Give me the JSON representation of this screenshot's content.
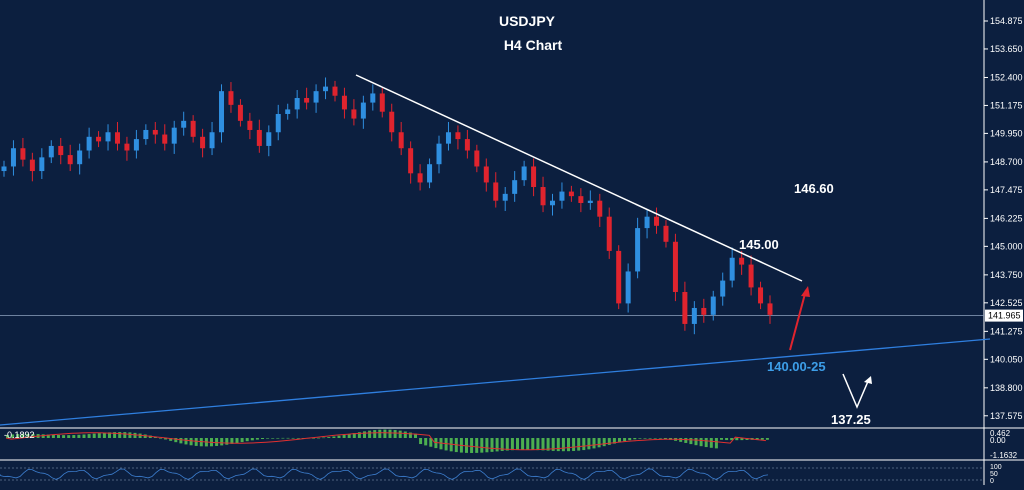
{
  "chart_data": {
    "type": "candlestick",
    "title": "USDJPY",
    "subtitle": "H4 Chart",
    "y_axis": {
      "ticks": [
        "154.875",
        "153.650",
        "152.400",
        "151.175",
        "149.950",
        "148.700",
        "147.475",
        "146.225",
        "145.000",
        "143.750",
        "142.525",
        "141.275",
        "140.050",
        "138.800",
        "137.575"
      ],
      "ylim": [
        137.0,
        156.0
      ],
      "position": "right"
    },
    "current_price": "141.965",
    "series": [
      {
        "values": [
          148.5,
          149.3,
          148.8,
          148.3,
          148.9,
          149.4,
          149.0,
          148.6,
          149.2,
          149.8,
          149.6,
          150.0,
          149.5,
          149.2,
          149.7,
          150.1,
          149.9,
          149.5,
          150.2,
          150.5,
          149.8,
          149.3,
          150.0,
          151.8,
          151.2,
          150.5,
          150.1,
          149.4,
          150.0,
          150.8,
          151.0,
          151.5,
          151.3,
          151.8,
          152.0,
          151.6,
          151.0,
          150.6,
          151.3,
          151.7,
          150.9,
          150.0,
          149.3,
          148.2,
          147.8,
          148.6,
          149.5,
          150.0,
          149.7,
          149.2,
          148.5,
          147.8,
          147.0,
          147.3,
          147.9,
          148.5,
          147.6,
          146.8,
          147.0,
          147.4,
          147.2,
          146.9,
          147.0,
          146.3,
          144.8,
          142.5,
          143.9,
          145.8,
          146.3,
          145.9,
          145.2,
          143.0,
          141.6,
          142.3,
          142.0,
          142.8,
          143.5,
          144.5,
          144.2,
          143.2,
          142.5,
          142.0
        ]
      }
    ],
    "annotations": [
      {
        "text": "146.60",
        "color": "#ffffff"
      },
      {
        "text": "145.00",
        "color": "#ffffff"
      },
      {
        "text": "140.00-25",
        "color": "#3d9ee8"
      },
      {
        "text": "137.25",
        "color": "#ffffff"
      }
    ],
    "macd": {
      "label_top": "-0.1892",
      "scale": [
        "0.462",
        "0.00",
        "-1.1632"
      ]
    },
    "stochastic": {
      "scale": [
        "100",
        "50",
        "0"
      ]
    },
    "colors": {
      "background": "#0c1f3f",
      "bull": "#2f8fe0",
      "bear": "#e0242e",
      "support_line": "#2f7fe0",
      "histogram": "#4caf50",
      "signal": "#e03030"
    }
  }
}
